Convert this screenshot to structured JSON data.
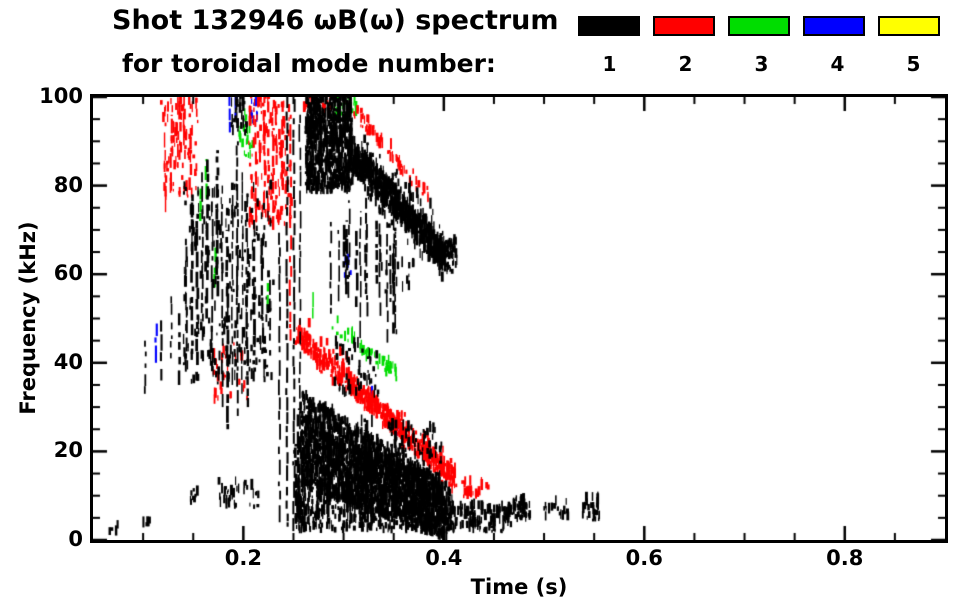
{
  "figure": {
    "title_line1": "Shot 132946 ωB(ω) spectrum",
    "title_line2": "for toroidal mode number:"
  },
  "legend": {
    "modes": [
      {
        "label": "1",
        "color": "#000000"
      },
      {
        "label": "2",
        "color": "#ff0000"
      },
      {
        "label": "3",
        "color": "#00dd00"
      },
      {
        "label": "4",
        "color": "#0000ff"
      },
      {
        "label": "5",
        "color": "#ffff00"
      }
    ]
  },
  "chart_data": {
    "type": "scatter",
    "title": "Shot 132946 ωB(ω) spectrum for toroidal mode number: 1 2 3 4 5",
    "xlabel": "Time (s)",
    "ylabel": "Frequency (kHz)",
    "xlim": [
      0.05,
      0.9
    ],
    "ylim": [
      0,
      100
    ],
    "xticks": [
      0.2,
      0.4,
      0.6,
      0.8
    ],
    "xtick_labels": [
      "0.2",
      "0.4",
      "0.6",
      "0.8"
    ],
    "x_minor_step": 0.05,
    "yticks": [
      0,
      20,
      40,
      60,
      80,
      100
    ],
    "ytick_labels": [
      "0",
      "20",
      "40",
      "60",
      "80",
      "100"
    ],
    "y_minor_step": 5,
    "grid": false,
    "legend_position": "top-right",
    "mode_colors": {
      "1": "#000000",
      "2": "#ff0000",
      "3": "#00dd00",
      "4": "#0000ff",
      "5": "#ffff00"
    },
    "clusters": [
      {
        "mode": 3,
        "kind": "vline_list",
        "lines": [
          [
            0.157,
            72,
            80
          ],
          [
            0.163,
            77,
            86
          ],
          [
            0.172,
            57,
            66
          ],
          [
            0.225,
            52,
            58
          ],
          [
            0.27,
            50,
            56
          ]
        ]
      },
      {
        "mode": 3,
        "kind": "box",
        "t": [
          0.195,
          0.21
        ],
        "f": [
          86,
          96
        ],
        "n": 25
      },
      {
        "mode": 3,
        "kind": "box",
        "t": [
          0.29,
          0.315
        ],
        "f": [
          94,
          100
        ],
        "n": 18
      },
      {
        "mode": 3,
        "kind": "band",
        "t": [
          0.29,
          0.355
        ],
        "f": [
          48,
          36
        ],
        "w": 3,
        "n": 45
      },
      {
        "mode": 4,
        "kind": "vline_list",
        "lines": [
          [
            0.113,
            40,
            50
          ],
          [
            0.186,
            92,
            100
          ],
          [
            0.193,
            95,
            100
          ],
          [
            0.328,
            31,
            36
          ]
        ]
      },
      {
        "mode": 4,
        "kind": "box",
        "t": [
          0.207,
          0.214
        ],
        "f": [
          94,
          99
        ],
        "n": 10
      },
      {
        "mode": 4,
        "kind": "box",
        "t": [
          0.348,
          0.358
        ],
        "f": [
          23,
          27
        ],
        "n": 8
      },
      {
        "mode": 4,
        "kind": "box",
        "t": [
          0.3,
          0.31
        ],
        "f": [
          59,
          63
        ],
        "n": 8
      },
      {
        "mode": 2,
        "kind": "vline_list",
        "lines": [
          [
            0.122,
            74,
            92
          ],
          [
            0.128,
            80,
            96
          ],
          [
            0.134,
            84,
            100
          ],
          [
            0.141,
            86,
            100
          ],
          [
            0.147,
            79,
            93
          ],
          [
            0.212,
            72,
            95
          ],
          [
            0.221,
            75,
            100
          ],
          [
            0.23,
            70,
            93
          ],
          [
            0.239,
            79,
            99
          ],
          [
            0.247,
            45,
            96
          ]
        ]
      },
      {
        "mode": 2,
        "kind": "box",
        "t": [
          0.118,
          0.155
        ],
        "f": [
          76,
          99
        ],
        "n": 90
      },
      {
        "mode": 2,
        "kind": "box",
        "t": [
          0.205,
          0.248
        ],
        "f": [
          70,
          100
        ],
        "n": 170
      },
      {
        "mode": 2,
        "kind": "band",
        "t": [
          0.252,
          0.41
        ],
        "f": [
          46,
          13
        ],
        "w": 4,
        "n": 520
      },
      {
        "mode": 2,
        "kind": "band",
        "t": [
          0.252,
          0.41
        ],
        "f": [
          47,
          14
        ],
        "w": 9,
        "n": 90
      },
      {
        "mode": 2,
        "kind": "band",
        "t": [
          0.3,
          0.385
        ],
        "f": [
          99,
          77
        ],
        "w": 3,
        "n": 70
      },
      {
        "mode": 2,
        "kind": "box",
        "t": [
          0.17,
          0.205
        ],
        "f": [
          30,
          45
        ],
        "n": 28
      },
      {
        "mode": 2,
        "kind": "box",
        "t": [
          0.41,
          0.445
        ],
        "f": [
          9,
          13
        ],
        "n": 25
      },
      {
        "mode": 2,
        "kind": "box",
        "t": [
          0.26,
          0.29
        ],
        "f": [
          96,
          100
        ],
        "n": 20
      },
      {
        "mode": 1,
        "kind": "vline_list",
        "lines": [
          [
            0.102,
            33,
            45
          ],
          [
            0.118,
            36,
            50
          ],
          [
            0.128,
            41,
            55
          ],
          [
            0.136,
            35,
            52
          ],
          [
            0.143,
            38,
            68
          ],
          [
            0.149,
            42,
            78
          ],
          [
            0.154,
            36,
            72
          ],
          [
            0.159,
            45,
            83
          ],
          [
            0.164,
            50,
            86
          ],
          [
            0.169,
            40,
            80
          ],
          [
            0.174,
            55,
            88
          ],
          [
            0.179,
            30,
            76
          ],
          [
            0.184,
            25,
            70
          ],
          [
            0.189,
            35,
            80
          ],
          [
            0.194,
            28,
            90
          ],
          [
            0.199,
            33,
            83
          ],
          [
            0.204,
            30,
            75
          ],
          [
            0.211,
            38,
            68
          ],
          [
            0.219,
            42,
            62
          ],
          [
            0.226,
            45,
            60
          ],
          [
            0.236,
            4,
            70
          ],
          [
            0.2435,
            3,
            100
          ],
          [
            0.2505,
            2,
            100
          ],
          [
            0.2565,
            5,
            96
          ]
        ]
      },
      {
        "mode": 1,
        "kind": "box",
        "t": [
          0.14,
          0.23
        ],
        "f": [
          35,
          80
        ],
        "n": 260
      },
      {
        "mode": 1,
        "kind": "box",
        "t": [
          0.188,
          0.205
        ],
        "f": [
          91,
          100
        ],
        "n": 35
      },
      {
        "mode": 1,
        "kind": "box",
        "t": [
          0.175,
          0.215
        ],
        "f": [
          7,
          13
        ],
        "n": 35
      },
      {
        "mode": 1,
        "kind": "box",
        "t": [
          0.065,
          0.075
        ],
        "f": [
          1,
          3
        ],
        "n": 4
      },
      {
        "mode": 1,
        "kind": "box",
        "t": [
          0.098,
          0.108
        ],
        "f": [
          1.5,
          4
        ],
        "n": 5
      },
      {
        "mode": 1,
        "kind": "box",
        "t": [
          0.147,
          0.157
        ],
        "f": [
          7,
          11
        ],
        "n": 8
      },
      {
        "mode": 1,
        "kind": "box",
        "t": [
          0.262,
          0.308
        ],
        "f": [
          78,
          100
        ],
        "n": 800
      },
      {
        "mode": 1,
        "kind": "band",
        "t": [
          0.305,
          0.402
        ],
        "f": [
          87,
          63
        ],
        "w": 6.5,
        "n": 700
      },
      {
        "mode": 1,
        "kind": "band",
        "t": [
          0.3,
          0.402
        ],
        "f": [
          88,
          64
        ],
        "w": 14,
        "n": 130
      },
      {
        "mode": 1,
        "kind": "vlines",
        "t": [
          0.275,
          0.355
        ],
        "fb": [
          44,
          62
        ],
        "ft": [
          66,
          80
        ],
        "count": 18
      },
      {
        "mode": 1,
        "kind": "box",
        "t": [
          0.29,
          0.335
        ],
        "f": [
          32,
          44
        ],
        "n": 55
      },
      {
        "mode": 1,
        "kind": "band",
        "t": [
          0.258,
          0.402
        ],
        "f": [
          18,
          6
        ],
        "w": 13,
        "n": 1600
      },
      {
        "mode": 1,
        "kind": "band",
        "t": [
          0.258,
          0.385
        ],
        "f": [
          29,
          11
        ],
        "w": 7,
        "n": 550
      },
      {
        "mode": 1,
        "kind": "box",
        "t": [
          0.252,
          0.41
        ],
        "f": [
          1.5,
          10
        ],
        "n": 450
      },
      {
        "mode": 1,
        "kind": "vlines",
        "t": [
          0.252,
          0.33
        ],
        "fb": [
          3,
          6
        ],
        "ft": [
          18,
          34
        ],
        "count": 22
      },
      {
        "mode": 1,
        "kind": "box",
        "t": [
          0.345,
          0.4
        ],
        "f": [
          12,
          26
        ],
        "n": 90
      },
      {
        "mode": 1,
        "kind": "box",
        "t": [
          0.4,
          0.468
        ],
        "f": [
          1.5,
          7
        ],
        "n": 140
      },
      {
        "mode": 1,
        "kind": "box",
        "t": [
          0.468,
          0.486
        ],
        "f": [
          4,
          9
        ],
        "n": 50
      },
      {
        "mode": 1,
        "kind": "box",
        "t": [
          0.5,
          0.525
        ],
        "f": [
          4,
          8
        ],
        "n": 18
      },
      {
        "mode": 1,
        "kind": "box",
        "t": [
          0.538,
          0.556
        ],
        "f": [
          4,
          9
        ],
        "n": 25
      },
      {
        "mode": 1,
        "kind": "box",
        "t": [
          0.395,
          0.415
        ],
        "f": [
          60,
          67
        ],
        "n": 60
      },
      {
        "mode": 1,
        "kind": "box",
        "t": [
          0.33,
          0.37
        ],
        "f": [
          55,
          62
        ],
        "n": 15
      }
    ]
  }
}
